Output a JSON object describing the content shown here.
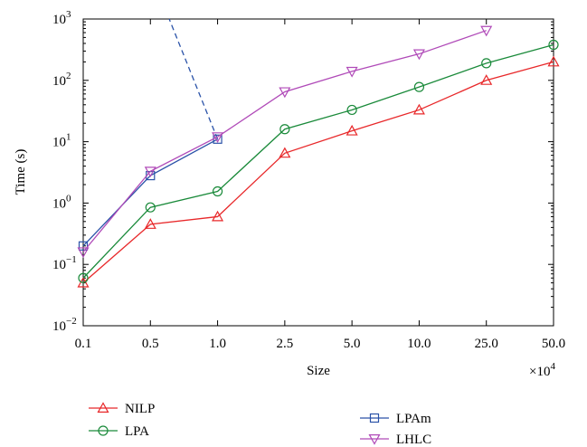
{
  "chart_data": {
    "type": "line",
    "xlabel": "Size",
    "ylabel": "Time (s)",
    "x_multiplier": "×10",
    "x_multiplier_exp": "4",
    "categories": [
      "0.1",
      "0.5",
      "1.0",
      "2.5",
      "5.0",
      "10.0",
      "25.0",
      "50.0"
    ],
    "y_scale": "log",
    "ylim": [
      0.01,
      1000
    ],
    "y_ticks": [
      {
        "value": 0.01,
        "base": "10",
        "exp": "−2"
      },
      {
        "value": 0.1,
        "base": "10",
        "exp": "−1"
      },
      {
        "value": 1,
        "base": "10",
        "exp": "0"
      },
      {
        "value": 10,
        "base": "10",
        "exp": "1"
      },
      {
        "value": 100,
        "base": "10",
        "exp": "2"
      },
      {
        "value": 1000,
        "base": "10",
        "exp": "3"
      }
    ],
    "legend_position": "bottom",
    "series": [
      {
        "name": "NILP",
        "color": "#e8282a",
        "marker": "triangle-up",
        "values": [
          0.05,
          0.45,
          0.6,
          6.5,
          15,
          33,
          100,
          200
        ]
      },
      {
        "name": "LPA",
        "color": "#1a8a3a",
        "marker": "circle",
        "values": [
          0.06,
          0.85,
          1.55,
          16,
          33,
          78,
          190,
          380
        ]
      },
      {
        "name": "LPAm",
        "color": "#2a52a8",
        "marker": "square",
        "values": [
          0.2,
          2.8,
          11,
          null,
          null,
          null,
          null,
          null
        ],
        "extrapolated": {
          "x_index": 1.28,
          "value": 1000
        }
      },
      {
        "name": "LHLC",
        "color": "#b04ab8",
        "marker": "triangle-down",
        "values": [
          0.16,
          3.3,
          12,
          65,
          140,
          270,
          650,
          null
        ]
      }
    ]
  }
}
